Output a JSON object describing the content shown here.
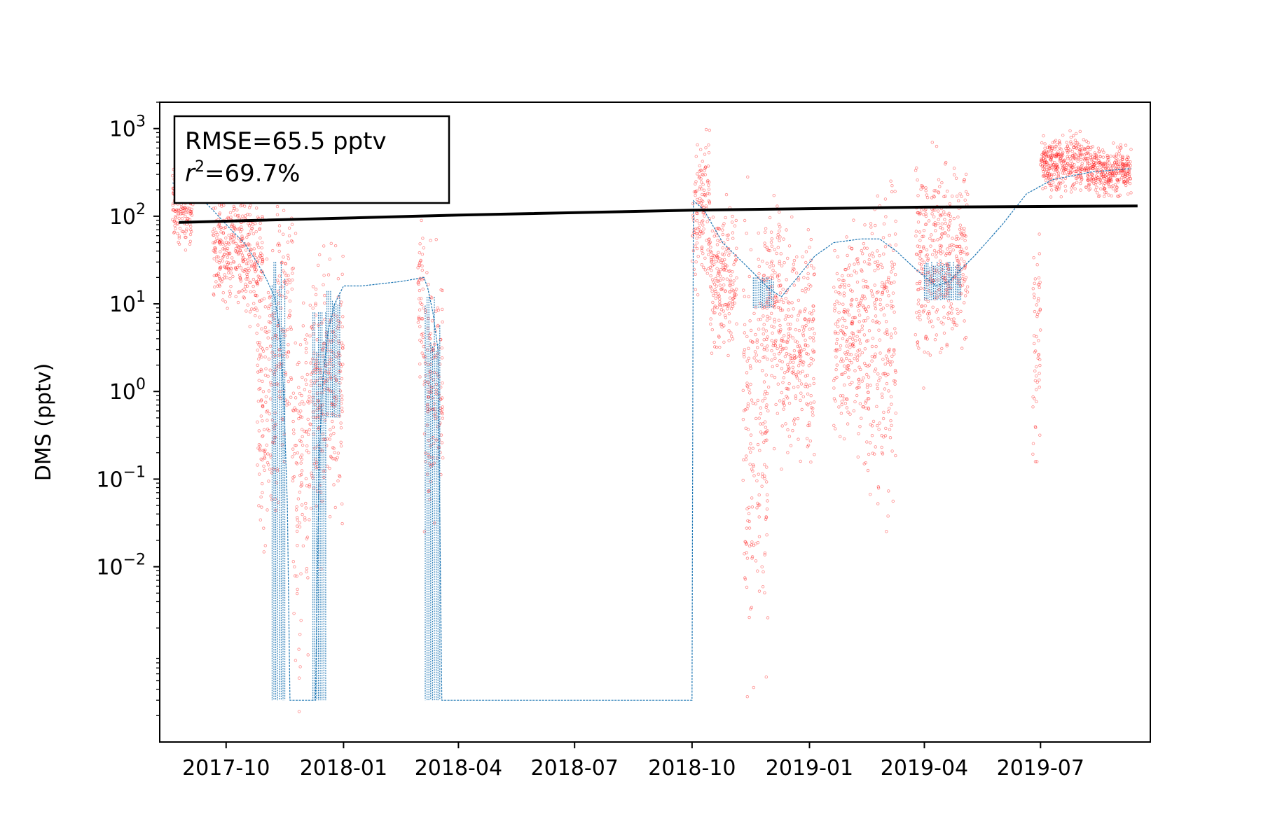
{
  "chart_data": {
    "type": "scatter",
    "title": "",
    "xlabel": "",
    "ylabel": "DMS (pptv)",
    "y_scale": "log",
    "xlim": [
      "2017-08-10",
      "2019-09-25"
    ],
    "ylim": [
      0.0001,
      2000
    ],
    "x_ticks": [
      "2017-10",
      "2018-01",
      "2018-04",
      "2018-07",
      "2018-10",
      "2019-01",
      "2019-04",
      "2019-07"
    ],
    "y_ticks": [
      {
        "value": 1000,
        "base": "10",
        "exp": "3"
      },
      {
        "value": 100,
        "base": "10",
        "exp": "2"
      },
      {
        "value": 10,
        "base": "10",
        "exp": "1"
      },
      {
        "value": 1,
        "base": "10",
        "exp": "0"
      },
      {
        "value": 0.1,
        "base": "10",
        "exp": "−1"
      },
      {
        "value": 0.01,
        "base": "10",
        "exp": "−2"
      }
    ],
    "legend_placement": "none",
    "annotation": {
      "position": "top-left",
      "line1": "RMSE=65.5 pptv",
      "r_symbol": "r",
      "r_exp": "2",
      "line2_rest": "=69.7%"
    },
    "colors": {
      "observed": "#ff0000",
      "model": "#1f77b4",
      "trend": "#000000"
    },
    "series": [
      {
        "style": "trend-line",
        "points": [
          [
            "2017-08-25",
            85
          ],
          [
            "2018-04-01",
            103
          ],
          [
            "2018-10-01",
            117
          ],
          [
            "2019-04-01",
            127
          ],
          [
            "2019-09-15",
            131
          ]
        ]
      },
      {
        "style": "model-line",
        "points": [
          [
            "2017-08-20",
            240
          ],
          [
            "2017-09-05",
            200
          ],
          [
            "2017-09-20",
            120
          ],
          [
            "2017-10-05",
            70
          ],
          [
            "2017-10-15",
            50
          ],
          [
            "2017-10-25",
            30
          ],
          [
            "2017-11-01",
            20
          ],
          [
            "2017-11-08",
            12
          ],
          [
            "2017-11-12",
            5
          ],
          [
            "2017-11-15",
            1
          ],
          [
            "2017-11-18",
            0.05
          ],
          [
            "2017-11-20",
            0.0003
          ],
          [
            "2017-12-10",
            0.0003
          ],
          [
            "2017-12-13",
            0.2
          ],
          [
            "2017-12-16",
            1.5
          ],
          [
            "2017-12-20",
            5
          ],
          [
            "2017-12-25",
            10
          ],
          [
            "2018-01-01",
            16
          ],
          [
            "2018-01-15",
            16
          ],
          [
            "2018-02-15",
            18
          ],
          [
            "2018-03-05",
            20
          ],
          [
            "2018-03-08",
            15
          ],
          [
            "2018-03-12",
            8
          ],
          [
            "2018-03-16",
            3
          ],
          [
            "2018-03-19",
            0.0003
          ],
          [
            "2018-10-01",
            0.0003
          ],
          [
            "2018-10-02",
            150
          ],
          [
            "2018-10-10",
            120
          ],
          [
            "2018-10-25",
            50
          ],
          [
            "2018-11-15",
            25
          ],
          [
            "2018-11-30",
            15
          ],
          [
            "2018-12-10",
            12
          ],
          [
            "2018-12-20",
            18
          ],
          [
            "2019-01-05",
            35
          ],
          [
            "2019-01-20",
            50
          ],
          [
            "2019-02-10",
            55
          ],
          [
            "2019-02-25",
            55
          ],
          [
            "2019-03-10",
            40
          ],
          [
            "2019-03-25",
            25
          ],
          [
            "2019-04-10",
            16
          ],
          [
            "2019-04-20",
            18
          ],
          [
            "2019-05-10",
            35
          ],
          [
            "2019-06-01",
            80
          ],
          [
            "2019-06-20",
            180
          ],
          [
            "2019-07-10",
            260
          ],
          [
            "2019-08-10",
            320
          ],
          [
            "2019-09-10",
            350
          ]
        ]
      },
      {
        "style": "model-oscillation-bands",
        "bands": [
          [
            "2017-11-06",
            "2017-11-16",
            0.0003,
            30
          ],
          [
            "2017-12-08",
            "2017-12-19",
            0.0003,
            8
          ],
          [
            "2017-12-19",
            "2017-12-30",
            0.5,
            14
          ],
          [
            "2018-03-06",
            "2018-03-18",
            0.0003,
            12
          ],
          [
            "2018-11-18",
            "2018-12-05",
            9,
            20
          ],
          [
            "2019-04-01",
            "2019-04-30",
            11,
            30
          ]
        ]
      },
      {
        "style": "observed-scatter",
        "clusters": [
          [
            "2017-08-20",
            "2017-09-05",
            60,
            280
          ],
          [
            "2017-09-20",
            "2017-10-15",
            15,
            130
          ],
          [
            "2017-10-15",
            "2017-10-30",
            10,
            100
          ],
          [
            "2017-10-25",
            "2017-11-10",
            0.05,
            10
          ],
          [
            "2017-11-10",
            "2017-11-22",
            0.3,
            200
          ],
          [
            "2017-11-22",
            "2017-12-05",
            0.002,
            5
          ],
          [
            "2017-12-05",
            "2017-12-15",
            0.05,
            10
          ],
          [
            "2017-12-15",
            "2018-01-01",
            0.1,
            20
          ],
          [
            "2018-02-28",
            "2018-03-05",
            3,
            40
          ],
          [
            "2018-03-05",
            "2018-03-20",
            0.1,
            12
          ],
          [
            "2018-10-01",
            "2018-10-15",
            30,
            500
          ],
          [
            "2018-10-15",
            "2018-11-05",
            5,
            80
          ],
          [
            "2018-11-10",
            "2018-11-30",
            0.005,
            20
          ],
          [
            "2018-11-25",
            "2018-12-10",
            1,
            80
          ],
          [
            "2018-12-10",
            "2019-01-05",
            0.4,
            30
          ],
          [
            "2019-01-20",
            "2019-02-15",
            0.5,
            30
          ],
          [
            "2019-02-15",
            "2019-03-10",
            0.2,
            100
          ],
          [
            "2019-03-25",
            "2019-04-10",
            5,
            250
          ],
          [
            "2019-04-10",
            "2019-05-05",
            6,
            200
          ],
          [
            "2019-06-25",
            "2019-07-01",
            0.3,
            20
          ],
          [
            "2019-07-01",
            "2019-08-10",
            230,
            700
          ],
          [
            "2019-08-10",
            "2019-09-10",
            200,
            500
          ]
        ]
      }
    ]
  }
}
